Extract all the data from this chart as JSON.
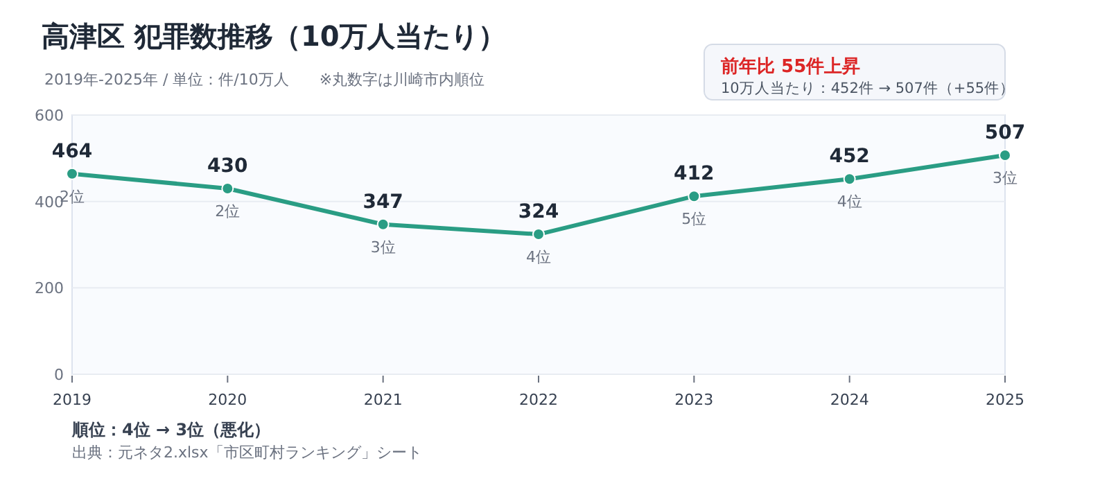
{
  "chart_data": {
    "type": "line",
    "title": "高津区  犯罪数推移（10万人当たり）",
    "subtitle": "2019年-2025年 / 単位：件/10万人　　※丸数字は川崎市内順位",
    "categories": [
      "2019",
      "2020",
      "2021",
      "2022",
      "2023",
      "2024",
      "2025"
    ],
    "series": [
      {
        "color": "#2a9d84",
        "values": [
          464,
          430,
          347,
          324,
          412,
          452,
          507
        ]
      }
    ],
    "ylim": [
      0,
      600
    ],
    "yticks": [
      0,
      200,
      400,
      600
    ],
    "grid": "y",
    "marker": "circle",
    "line_style": "solid",
    "data_labels": true,
    "annotations": [
      "前年比  55件上昇",
      "10万人当たり：452件 → 507件（+55件）",
      "順位：4位 → 3位（悪化）",
      "出典：元ネタ2.xlsx「市区町村ランキング」シート",
      {
        "text": "2位",
        "x": "2019",
        "y": 464
      },
      {
        "text": "2位",
        "x": "2020",
        "y": 430
      },
      {
        "text": "3位",
        "x": "2021",
        "y": 347
      },
      {
        "text": "4位",
        "x": "2022",
        "y": 324
      },
      {
        "text": "5位",
        "x": "2023",
        "y": 412
      },
      {
        "text": "4位",
        "x": "2024",
        "y": 452
      },
      {
        "text": "3位",
        "x": "2025",
        "y": 507
      }
    ]
  }
}
